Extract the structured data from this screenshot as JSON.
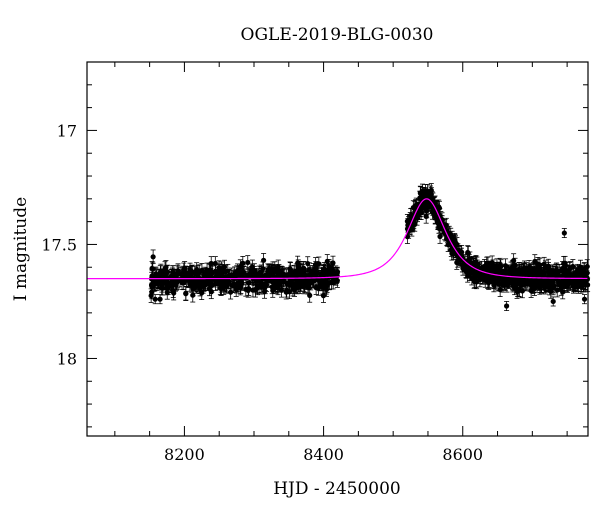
{
  "chart_data": {
    "type": "scatter",
    "title": "OGLE-2019-BLG-0030",
    "xlabel": "HJD - 2450000",
    "ylabel": "I magnitude",
    "xlim": [
      8060,
      8780
    ],
    "ylim": [
      18.34,
      16.7
    ],
    "y_inverted": true,
    "x_ticks": [
      8200,
      8400,
      8600
    ],
    "y_ticks": [
      17,
      17.5,
      18
    ],
    "grid": false,
    "model_color": "#ff00ff",
    "point_color": "#000000",
    "model": {
      "baseline_mag": 17.65,
      "peak_time": 8548,
      "peak_mag": 17.3,
      "einstein_time": 34
    },
    "series": [
      {
        "segments": [
          {
            "x_range": [
              8152,
              8420
            ],
            "n": 520,
            "scatter": 0.055,
            "error": 0.03
          },
          {
            "x_range": [
              8520,
              8780
            ],
            "n": 700,
            "scatter": 0.05,
            "error": 0.03
          }
        ],
        "outliers": [
          {
            "x": 8158,
            "y": 17.74
          },
          {
            "x": 8165,
            "y": 17.74
          },
          {
            "x": 8420,
            "y": 17.62
          },
          {
            "x": 8620,
            "y": 17.61
          },
          {
            "x": 8663,
            "y": 17.77
          },
          {
            "x": 8730,
            "y": 17.75
          },
          {
            "x": 8746,
            "y": 17.45
          },
          {
            "x": 8775,
            "y": 17.74
          }
        ]
      }
    ]
  }
}
